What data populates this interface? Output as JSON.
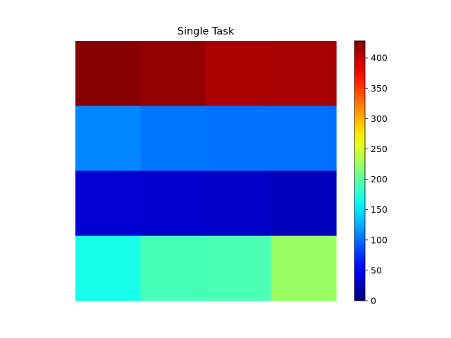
{
  "chart_data": {
    "type": "heatmap",
    "title": "Single Task",
    "xlabel": "",
    "ylabel": "",
    "axes_visible": false,
    "rows": 4,
    "cols": 4,
    "values": [
      [
        425,
        420,
        410,
        412
      ],
      [
        110,
        103,
        101,
        100
      ],
      [
        35,
        33,
        30,
        25
      ],
      [
        170,
        190,
        192,
        225
      ]
    ],
    "colormap": "jet",
    "colorbar": {
      "vmin": 0,
      "vmax": 428,
      "ticks": [
        0,
        50,
        100,
        150,
        200,
        250,
        300,
        350,
        400
      ],
      "tick_labels": [
        "0",
        "50",
        "100",
        "150",
        "200",
        "250",
        "300",
        "350",
        "400"
      ]
    },
    "grid": false,
    "legend": "none"
  }
}
